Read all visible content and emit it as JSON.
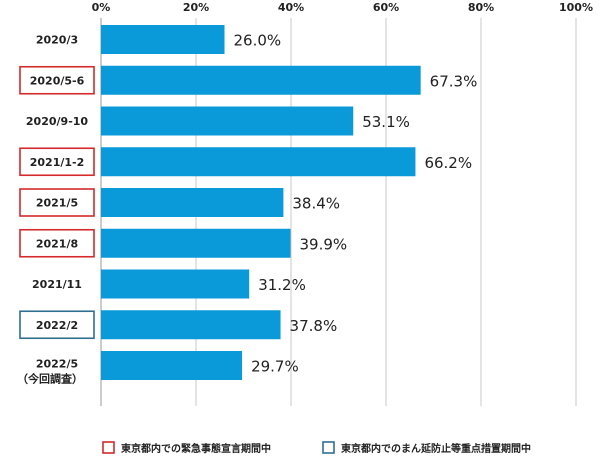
{
  "chart_data": {
    "type": "bar",
    "orientation": "horizontal",
    "categories": [
      "2020/3",
      "2020/5-6",
      "2020/9-10",
      "2021/1-2",
      "2021/5",
      "2021/8",
      "2021/11",
      "2022/2",
      "2022/5"
    ],
    "category_sublabels": [
      "",
      "",
      "",
      "",
      "",
      "",
      "",
      "",
      "（今回調査）"
    ],
    "values": [
      26.0,
      67.3,
      53.1,
      66.2,
      38.4,
      39.9,
      31.2,
      37.8,
      29.7
    ],
    "value_labels": [
      "26.0%",
      "67.3%",
      "53.1%",
      "66.2%",
      "38.4%",
      "39.9%",
      "31.2%",
      "37.8%",
      "29.7%"
    ],
    "category_marks": [
      "none",
      "emergency",
      "none",
      "emergency",
      "emergency",
      "emergency",
      "none",
      "priority",
      "none"
    ],
    "x_ticks": [
      "0%",
      "20%",
      "40%",
      "60%",
      "80%",
      "100%"
    ],
    "xlim": [
      0,
      100
    ],
    "grid": true,
    "tick_position": "top",
    "bar_color": "#0b9ad9",
    "grid_color": "#c8c8c8",
    "legend_position": "bottom-right",
    "legend": [
      {
        "key": "emergency",
        "label": "東京都内での緊急事態宣言期間中",
        "color": "#d42a2a"
      },
      {
        "key": "priority",
        "label": "東京都内でのまん延防止等重点措置期間中",
        "color": "#2e6f91"
      }
    ]
  }
}
